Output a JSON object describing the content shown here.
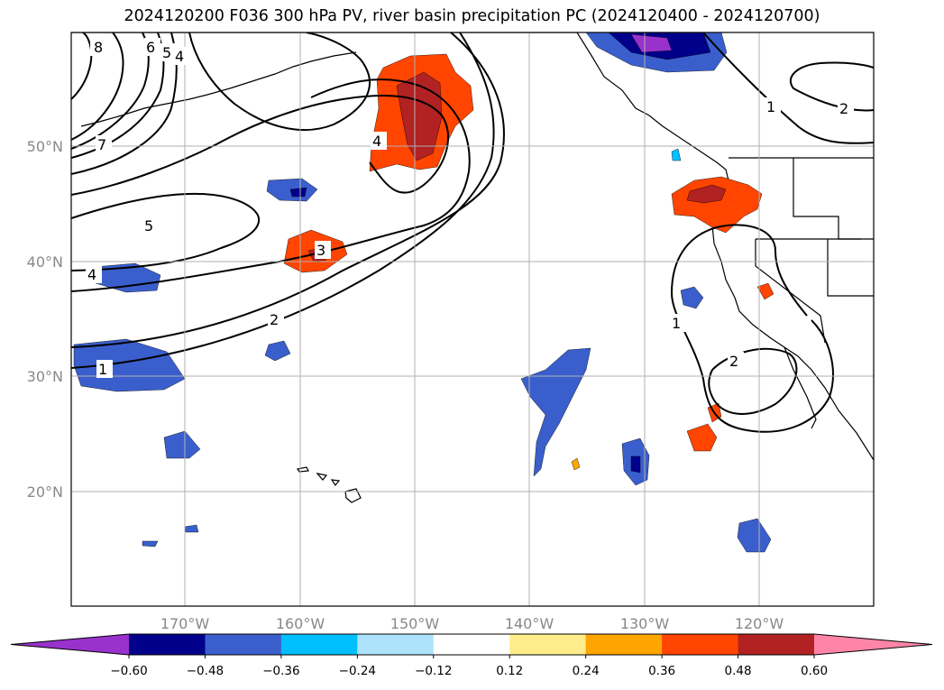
{
  "title": "2024120200 F036 300 hPa PV, river basin precipitation PC (2024120400 - 2024120700)",
  "lat_labels": [
    "50°N",
    "40°N",
    "30°N",
    "20°N"
  ],
  "lon_labels": [
    "170°W",
    "160°W",
    "150°W",
    "140°W",
    "130°W",
    "120°W"
  ],
  "pv_contour_labels": [
    "8",
    "6",
    "5",
    "4",
    "7",
    "4",
    "5",
    "4",
    "3",
    "2",
    "1",
    "1",
    "2",
    "1",
    "2"
  ],
  "colorbar": {
    "ticks": [
      "−0.60",
      "−0.48",
      "−0.36",
      "−0.24",
      "−0.12",
      "0.12",
      "0.24",
      "0.36",
      "0.48",
      "0.60"
    ],
    "colors": [
      "#9932CC",
      "#00008B",
      "#3A5FCD",
      "#00BFFF",
      "#ADE3FA",
      "#FFFFFF",
      "#FFEC8B",
      "#FFA500",
      "#FF4500",
      "#B22222",
      "#FF85A8"
    ]
  },
  "colors": {
    "coast": "#000000",
    "grid": "#b0b0b0",
    "contour": "#000000",
    "tick_text": "#888888"
  }
}
